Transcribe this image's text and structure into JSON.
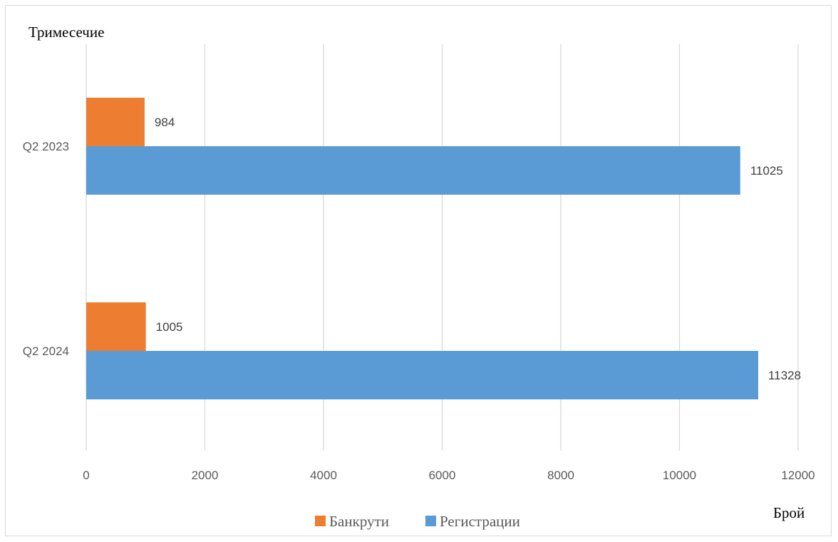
{
  "chart_data": {
    "type": "bar",
    "orientation": "horizontal",
    "categories": [
      "Q2 2023",
      "Q2 2024"
    ],
    "series": [
      {
        "name": "Банкрути",
        "values": [
          984,
          1005
        ],
        "color": "#ed7d31"
      },
      {
        "name": "Регистрации",
        "values": [
          11025,
          11328
        ],
        "color": "#5b9bd5"
      }
    ],
    "xlabel": "Брой",
    "ylabel": "Тримесечие",
    "xlim": [
      0,
      12000
    ],
    "xticks": [
      0,
      2000,
      4000,
      6000,
      8000,
      10000,
      12000
    ],
    "grid": "vertical",
    "legend_position": "bottom",
    "gridline_color": "#d9d9d9"
  }
}
